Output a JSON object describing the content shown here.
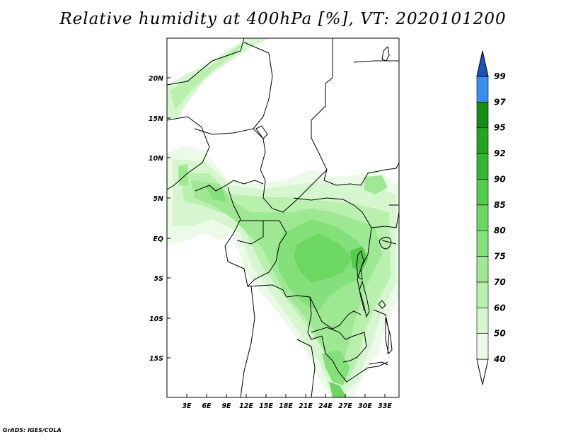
{
  "title": "Relative humidity at 400hPa [%], VT: 2020101200",
  "credit": "GrADS: IGES/COLA",
  "axes": {
    "x_ticks": [
      "3E",
      "6E",
      "9E",
      "12E",
      "15E",
      "18E",
      "21E",
      "24E",
      "27E",
      "30E",
      "33E"
    ],
    "y_ticks": [
      "20N",
      "15N",
      "10N",
      "5N",
      "EQ",
      "5S",
      "10S",
      "15S"
    ]
  },
  "colorbar": {
    "levels": [
      "40",
      "50",
      "60",
      "70",
      "75",
      "80",
      "85",
      "90",
      "92",
      "95",
      "97",
      "99"
    ],
    "colors": [
      "#ebfbe8",
      "#d5f6ce",
      "#b9f0ae",
      "#9ee893",
      "#84e07a",
      "#6cd862",
      "#52cc4b",
      "#34b834",
      "#23a523",
      "#138e13",
      "#3a8ef0",
      "#2a70db",
      "#1a50c0"
    ],
    "below_color": "#ffffff",
    "above_color": "#1a50c0"
  },
  "map": {
    "region": "Central Africa",
    "lon_range": [
      0,
      35
    ],
    "lat_range": [
      -20,
      25
    ]
  }
}
